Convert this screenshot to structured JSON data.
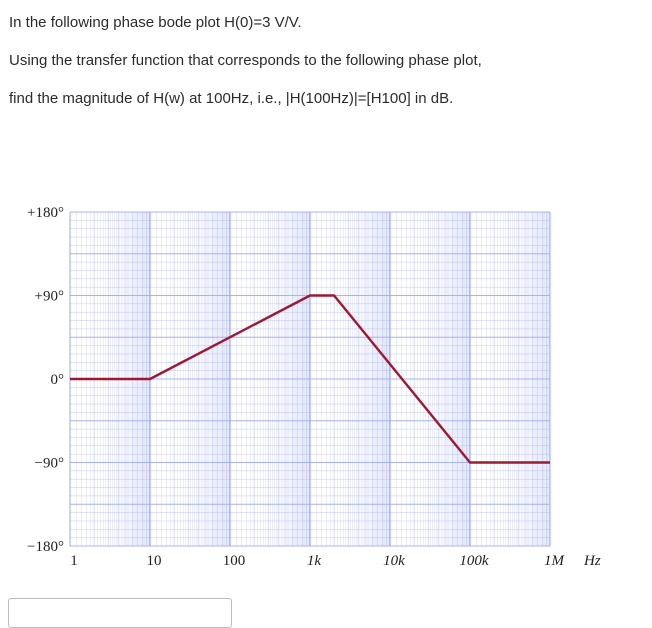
{
  "question": {
    "line1": "In the following phase bode plot H(0)=3 V/V.",
    "line2": "Using the transfer function that corresponds to the following phase plot,",
    "line3": "find the magnitude of H(w) at 100Hz, i.e., |H(100Hz)|=[H100] in dB."
  },
  "answer": {
    "value": "",
    "placeholder": ""
  },
  "chart_data": {
    "type": "line",
    "title": "",
    "xlabel": "Hz",
    "ylabel": "",
    "x_scale": "log",
    "xlim": [
      1,
      1000000
    ],
    "ylim": [
      -180,
      180
    ],
    "x_tick_labels": [
      "1",
      "10",
      "100",
      "1k",
      "10k",
      "100k",
      "1M"
    ],
    "x_tick_values": [
      1,
      10,
      100,
      1000,
      10000,
      100000,
      1000000
    ],
    "y_tick_labels": [
      "+180°",
      "+90°",
      "0°",
      "−90°",
      "−180°"
    ],
    "y_tick_values": [
      180,
      90,
      0,
      -90,
      -180
    ],
    "grid": true,
    "line_color": "#a0182e",
    "grid_color": "#9aa8f0",
    "series": [
      {
        "x": [
          1,
          10,
          1000,
          2000,
          100000,
          1000000
        ],
        "y": [
          0,
          0,
          90,
          90,
          -90,
          -90
        ]
      }
    ]
  }
}
